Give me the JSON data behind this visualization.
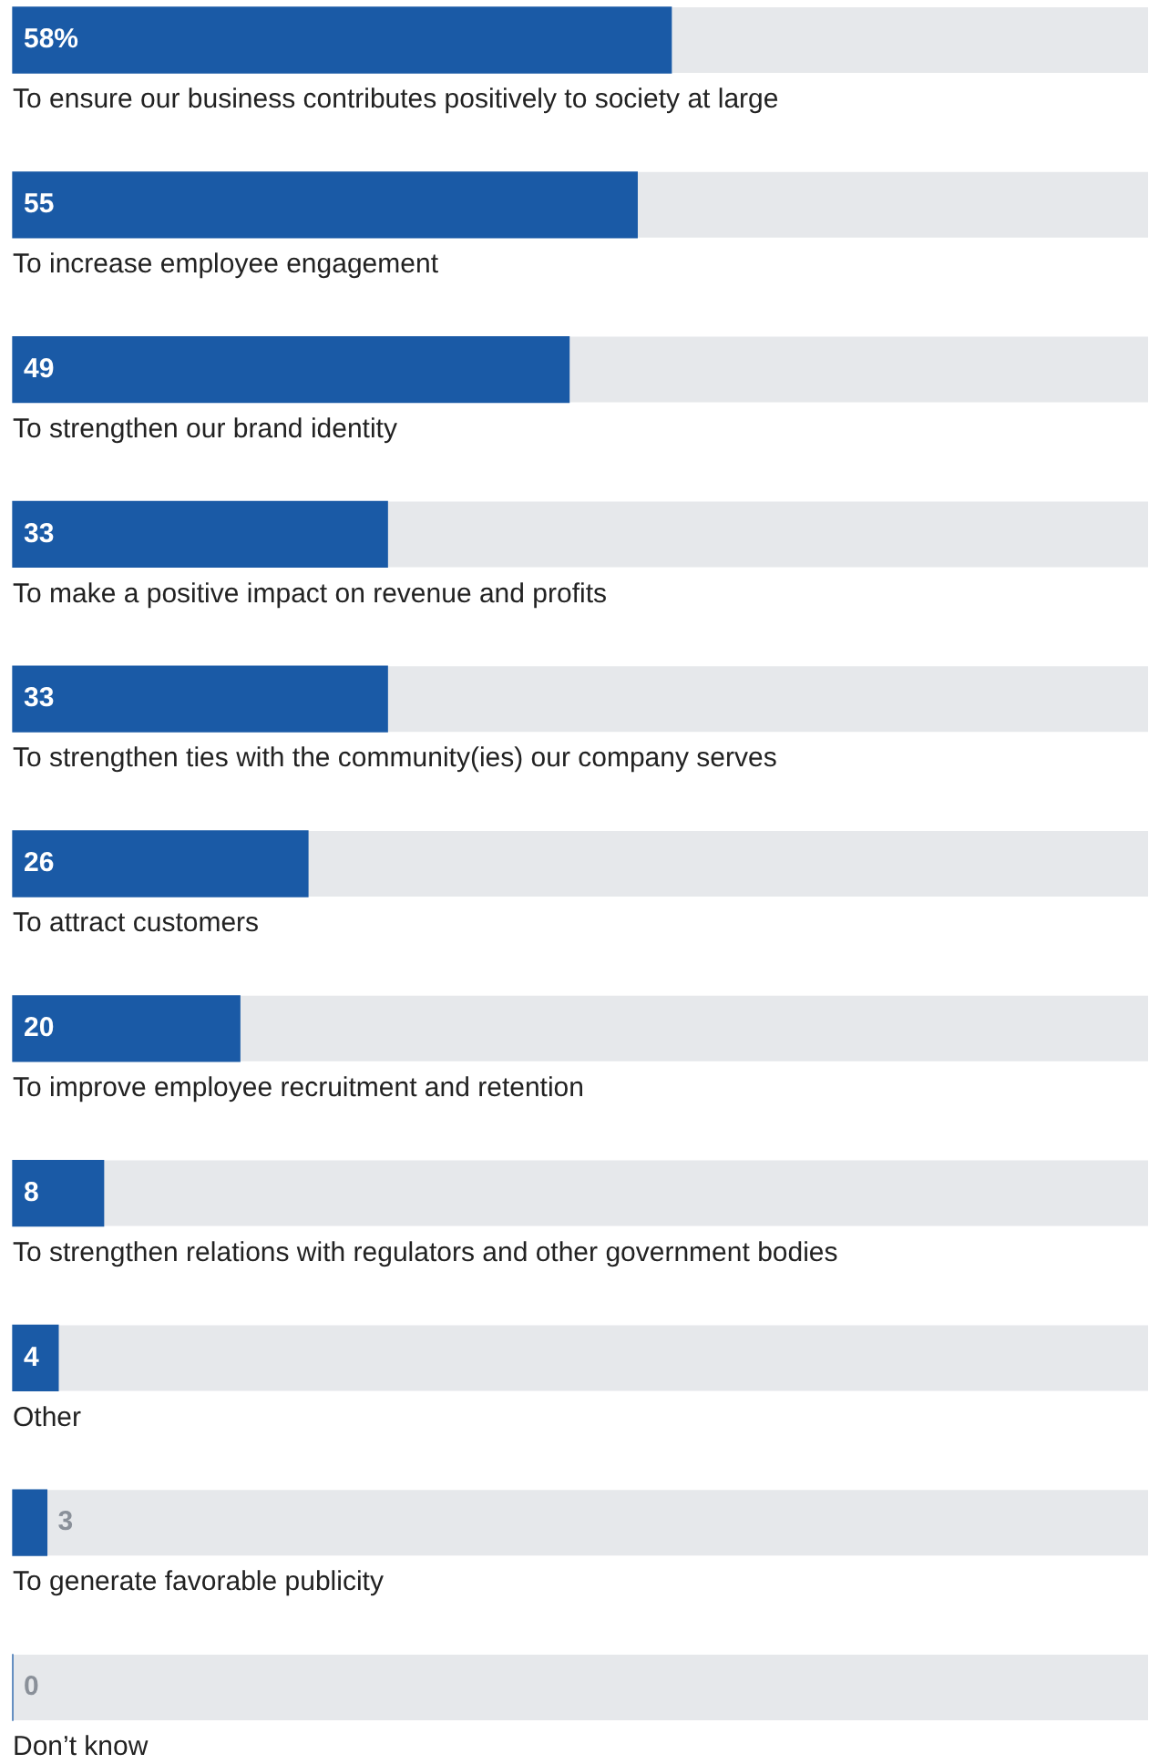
{
  "chart_data": {
    "type": "bar",
    "orientation": "horizontal",
    "categories": [
      "To ensure our business contributes positively to society at large",
      "To increase employee engagement",
      "To strengthen our brand identity",
      "To make a positive impact on revenue and profits",
      "To strengthen ties with the community(ies) our company serves",
      "To attract customers",
      "To improve employee recruitment and retention",
      "To strengthen relations with regulators and other government bodies",
      "Other",
      "To generate favorable publicity",
      "Don’t know"
    ],
    "values": [
      58,
      55,
      49,
      33,
      33,
      26,
      20,
      8,
      4,
      3,
      0
    ],
    "value_labels": [
      "58%",
      "55",
      "49",
      "33",
      "33",
      "26",
      "20",
      "8",
      "4",
      "3",
      "0"
    ],
    "color": "#1a5aa6",
    "xlim": [
      0,
      100
    ],
    "tick_labels": "y"
  }
}
